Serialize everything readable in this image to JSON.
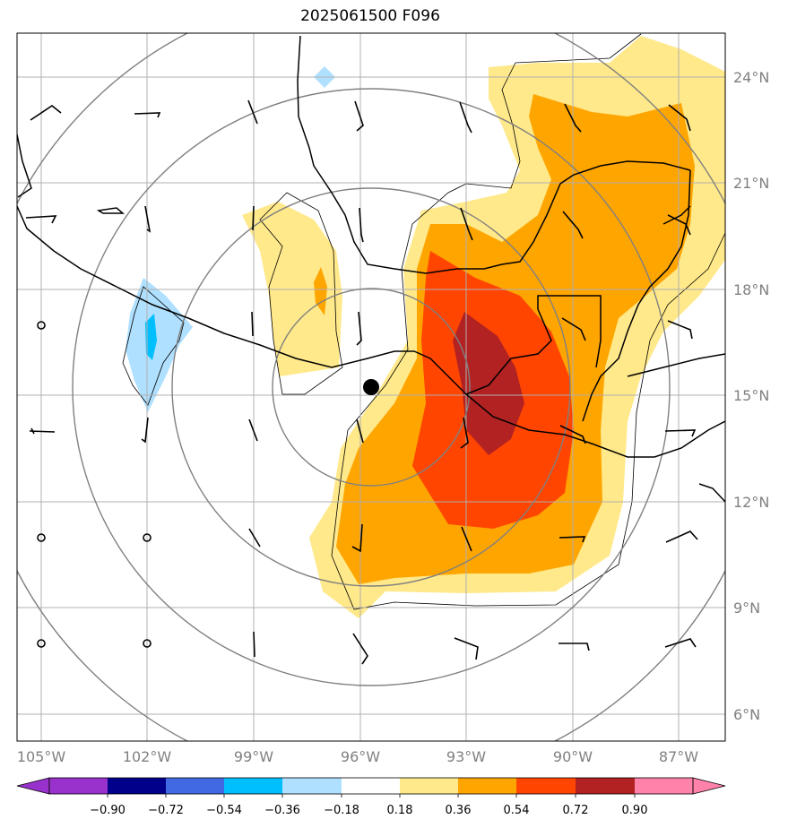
{
  "title": "2025061500 F096",
  "map": {
    "lon_ticks": [
      "105°W",
      "102°W",
      "99°W",
      "96°W",
      "93°W",
      "90°W",
      "87°W"
    ],
    "lat_ticks": [
      "24°N",
      "21°N",
      "18°N",
      "15°N",
      "12°N",
      "9°N",
      "6°N"
    ],
    "center_marker": {
      "lon": -95.8,
      "lat": 15.2,
      "label": ""
    },
    "range_ring_color": "#808080",
    "gridline_color": "#b0b0b0",
    "coastline_color": "#000000"
  },
  "colorbar": {
    "levels": [
      "−0.90",
      "−0.72",
      "−0.54",
      "−0.36",
      "−0.18",
      "0.18",
      "0.36",
      "0.54",
      "0.72",
      "0.90"
    ],
    "colors": [
      "#9932cc",
      "#00008b",
      "#4169e1",
      "#00bfff",
      "#b0e0ff",
      "#ffffff",
      "#ffe98a",
      "#ffa500",
      "#ff4500",
      "#b22222",
      "#ff82ab"
    ]
  },
  "fill_colors": {
    "light_yellow": "#ffe98a",
    "orange": "#ffa500",
    "red_orange": "#ff4500",
    "dark_red": "#b22222",
    "light_blue": "#b0e0ff",
    "blue": "#00bfff"
  }
}
